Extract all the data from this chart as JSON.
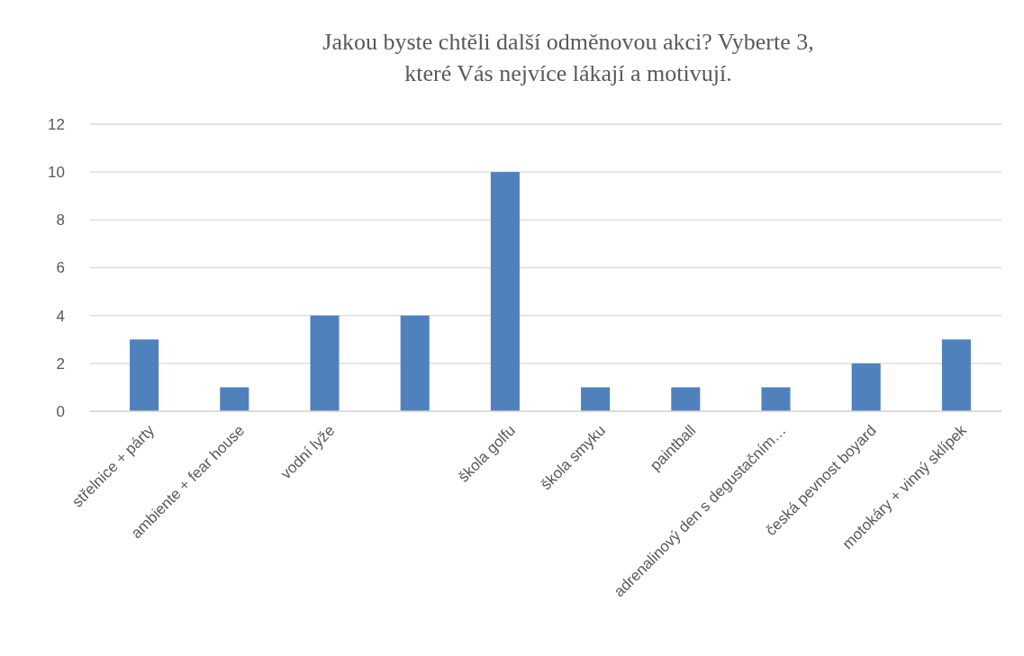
{
  "chart_data": {
    "type": "bar",
    "title": "Jakou byste chtěli další odměnovou akci? Vyberte 3, které Vás nejvíce lákají a motivují.",
    "categories": [
      "střelnice + párty",
      "ambiente + fear house",
      "vodní lyže",
      null,
      "škola golfu",
      "škola smyku",
      "paintball",
      "adrenalinový den s degustačním…",
      "česká pevnost boyard",
      "motokáry + vinný sklípek"
    ],
    "values": [
      3,
      1,
      4,
      4,
      10,
      1,
      1,
      1,
      2,
      3
    ],
    "color": "#4f81bd",
    "ylim": [
      0,
      12
    ],
    "yticks": [
      0,
      2,
      4,
      6,
      8,
      10,
      12
    ],
    "grid": "y"
  }
}
